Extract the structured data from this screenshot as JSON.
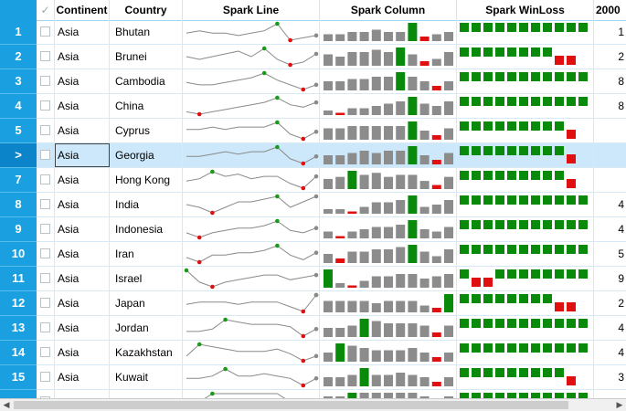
{
  "header": {
    "check_glyph": "✓",
    "columns": [
      "Continent",
      "Country",
      "Spark Line",
      "Spark Column",
      "Spark WinLoss",
      "2000"
    ]
  },
  "selected_row_label": ">",
  "colors": {
    "row_header": "#1aa0e0",
    "high_point": "#1a9a1a",
    "low_point": "#e01010",
    "bar": "#8c8c8c",
    "win": "#0a8a0a",
    "loss": "#e01010"
  },
  "rows": [
    {
      "num": "1",
      "continent": "Asia",
      "country": "Bhutan",
      "line": [
        5,
        6,
        5,
        5,
        4,
        5,
        6,
        9,
        2,
        3,
        4
      ],
      "col": [
        3,
        3,
        4,
        4,
        5,
        4,
        4,
        8,
        2,
        3,
        4
      ],
      "wl": [
        1,
        1,
        1,
        1,
        1,
        1,
        1,
        1,
        1,
        1,
        1
      ],
      "last": "1"
    },
    {
      "num": "2",
      "continent": "Asia",
      "country": "Brunei",
      "line": [
        6,
        5,
        6,
        7,
        8,
        6,
        9,
        5,
        3,
        4,
        7
      ],
      "col": [
        5,
        4,
        6,
        6,
        7,
        6,
        8,
        5,
        2,
        3,
        6
      ],
      "wl": [
        1,
        1,
        1,
        1,
        1,
        1,
        1,
        1,
        -1,
        -1,
        0
      ],
      "last": "2"
    },
    {
      "num": "3",
      "continent": "Asia",
      "country": "Cambodia",
      "line": [
        5,
        4,
        4,
        5,
        6,
        7,
        9,
        6,
        4,
        2,
        4
      ],
      "col": [
        4,
        4,
        5,
        5,
        6,
        6,
        8,
        6,
        4,
        2,
        4
      ],
      "wl": [
        1,
        1,
        1,
        1,
        1,
        1,
        1,
        1,
        1,
        1,
        1
      ],
      "last": "8"
    },
    {
      "num": "4",
      "continent": "Asia",
      "country": "China",
      "line": [
        3,
        2,
        3,
        4,
        5,
        6,
        7,
        9,
        6,
        5,
        7
      ],
      "col": [
        2,
        1,
        3,
        3,
        4,
        5,
        6,
        8,
        5,
        4,
        6
      ],
      "wl": [
        1,
        1,
        1,
        1,
        1,
        1,
        1,
        1,
        1,
        1,
        1
      ],
      "last": "8"
    },
    {
      "num": "5",
      "continent": "Asia",
      "country": "Cyprus",
      "line": [
        6,
        6,
        7,
        6,
        7,
        7,
        7,
        9,
        4,
        2,
        5
      ],
      "col": [
        5,
        5,
        6,
        6,
        6,
        6,
        6,
        8,
        4,
        2,
        5
      ],
      "wl": [
        1,
        1,
        1,
        1,
        1,
        1,
        1,
        1,
        1,
        -1,
        0
      ],
      "last": ""
    },
    {
      "num": ">",
      "continent": "Asia",
      "country": "Georgia",
      "line": [
        5,
        5,
        6,
        7,
        6,
        7,
        7,
        9,
        4,
        2,
        5
      ],
      "col": [
        4,
        4,
        5,
        6,
        5,
        6,
        6,
        8,
        4,
        2,
        5
      ],
      "wl": [
        1,
        1,
        1,
        1,
        1,
        1,
        1,
        1,
        1,
        -1,
        0
      ],
      "last": ""
    },
    {
      "num": "7",
      "continent": "Asia",
      "country": "Hong Kong",
      "line": [
        5,
        6,
        9,
        7,
        8,
        6,
        7,
        7,
        4,
        2,
        7
      ],
      "col": [
        5,
        6,
        9,
        7,
        8,
        6,
        7,
        7,
        4,
        2,
        6
      ],
      "wl": [
        1,
        1,
        1,
        1,
        1,
        1,
        1,
        1,
        1,
        -1,
        0
      ],
      "last": ""
    },
    {
      "num": "8",
      "continent": "Asia",
      "country": "India",
      "line": [
        5,
        4,
        2,
        4,
        6,
        6,
        7,
        8,
        4,
        6,
        8
      ],
      "col": [
        2,
        2,
        1,
        3,
        5,
        5,
        6,
        8,
        3,
        4,
        6
      ],
      "wl": [
        1,
        1,
        1,
        1,
        1,
        1,
        1,
        1,
        1,
        1,
        1
      ],
      "last": "4"
    },
    {
      "num": "9",
      "continent": "Asia",
      "country": "Indonesia",
      "line": [
        4,
        2,
        4,
        5,
        6,
        6,
        7,
        9,
        5,
        4,
        6
      ],
      "col": [
        3,
        1,
        3,
        4,
        5,
        5,
        6,
        8,
        4,
        3,
        5
      ],
      "wl": [
        1,
        1,
        1,
        1,
        1,
        1,
        1,
        1,
        1,
        1,
        1
      ],
      "last": "4"
    },
    {
      "num": "10",
      "continent": "Asia",
      "country": "Iran",
      "line": [
        4,
        2,
        5,
        5,
        6,
        6,
        7,
        9,
        5,
        3,
        6
      ],
      "col": [
        4,
        2,
        5,
        5,
        6,
        6,
        7,
        8,
        5,
        3,
        6
      ],
      "wl": [
        1,
        1,
        1,
        1,
        1,
        1,
        1,
        1,
        1,
        1,
        1
      ],
      "last": "5"
    },
    {
      "num": "11",
      "continent": "Asia",
      "country": "Israel",
      "line": [
        9,
        4,
        2,
        4,
        5,
        6,
        7,
        7,
        5,
        6,
        7
      ],
      "col": [
        8,
        2,
        1,
        3,
        5,
        5,
        6,
        6,
        4,
        5,
        6
      ],
      "wl": [
        1,
        -1,
        -1,
        1,
        1,
        1,
        1,
        1,
        1,
        1,
        1
      ],
      "last": "9"
    },
    {
      "num": "12",
      "continent": "Asia",
      "country": "Japan",
      "line": [
        5,
        6,
        6,
        6,
        5,
        6,
        6,
        6,
        4,
        2,
        9
      ],
      "col": [
        5,
        5,
        5,
        5,
        4,
        5,
        5,
        5,
        3,
        2,
        8
      ],
      "wl": [
        1,
        1,
        1,
        1,
        1,
        1,
        1,
        1,
        -1,
        -1,
        0
      ],
      "last": "2"
    },
    {
      "num": "13",
      "continent": "Asia",
      "country": "Jordan",
      "line": [
        4,
        4,
        5,
        9,
        8,
        7,
        7,
        7,
        6,
        2,
        5
      ],
      "col": [
        4,
        4,
        5,
        8,
        7,
        6,
        6,
        6,
        5,
        2,
        5
      ],
      "wl": [
        1,
        1,
        1,
        1,
        1,
        1,
        1,
        1,
        1,
        1,
        1
      ],
      "last": "4"
    },
    {
      "num": "14",
      "continent": "Asia",
      "country": "Kazakhstan",
      "line": [
        4,
        9,
        8,
        7,
        6,
        6,
        6,
        7,
        5,
        2,
        4
      ],
      "col": [
        4,
        8,
        7,
        6,
        5,
        5,
        5,
        6,
        4,
        2,
        4
      ],
      "wl": [
        1,
        1,
        1,
        1,
        1,
        1,
        1,
        1,
        1,
        1,
        1
      ],
      "last": "4"
    },
    {
      "num": "15",
      "continent": "Asia",
      "country": "Kuwait",
      "line": [
        5,
        5,
        6,
        9,
        6,
        6,
        7,
        6,
        5,
        2,
        5
      ],
      "col": [
        4,
        4,
        5,
        8,
        5,
        5,
        6,
        5,
        4,
        2,
        4
      ],
      "wl": [
        1,
        1,
        1,
        1,
        1,
        1,
        1,
        1,
        1,
        -1,
        0
      ],
      "last": "3"
    },
    {
      "num": "",
      "continent": "",
      "country": "",
      "line": [
        5,
        5,
        6,
        6,
        6,
        6,
        6,
        6,
        5,
        4,
        5
      ],
      "col": [
        4,
        4,
        5,
        5,
        5,
        5,
        5,
        5,
        4,
        3,
        4
      ],
      "wl": [
        1,
        1,
        1,
        1,
        1,
        1,
        1,
        1,
        1,
        1,
        1
      ],
      "last": ""
    }
  ],
  "scrollbar": {
    "left_arrow": "◀",
    "right_arrow": "▶"
  }
}
